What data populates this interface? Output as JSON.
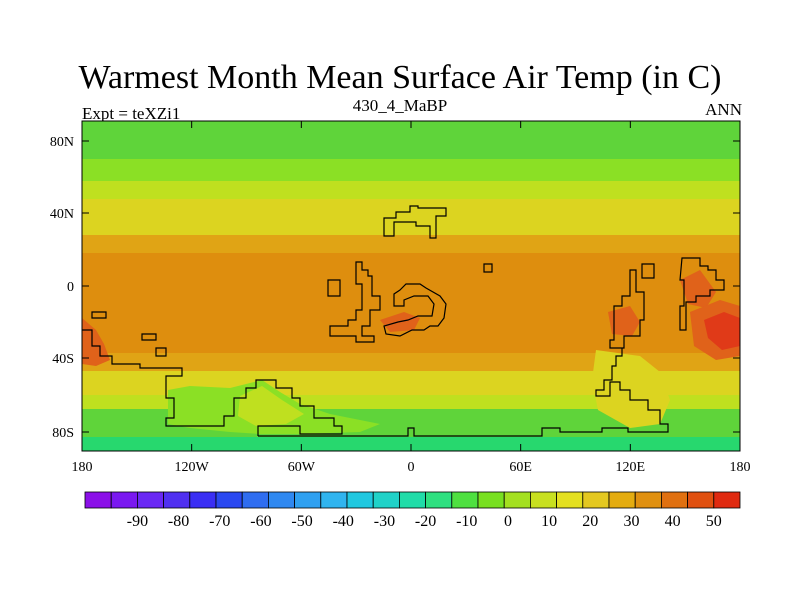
{
  "title": "Warmest Month Mean Surface Air Temp (in C)",
  "subtitle_left": "Expt = teXZi1",
  "subtitle_center": "430_4_MaBP",
  "subtitle_right": "ANN",
  "lon_ticks": [
    "180",
    "120W",
    "60W",
    "0",
    "60E",
    "120E",
    "180"
  ],
  "lat_ticks": [
    "80N",
    "40N",
    "0",
    "40S",
    "80S"
  ],
  "colorbar_labels": [
    "-90",
    "-80",
    "-70",
    "-60",
    "-50",
    "-40",
    "-30",
    "-20",
    "-10",
    "0",
    "10",
    "20",
    "30",
    "40",
    "50"
  ],
  "colorbar_colors": [
    "#8b10e8",
    "#7a18f0",
    "#6a28f4",
    "#5030f0",
    "#3a2ef4",
    "#2a48f0",
    "#2f6df0",
    "#2f88f0",
    "#2fa0f0",
    "#30b4ef",
    "#20c8e0",
    "#20d2c8",
    "#20dca8",
    "#2ee080",
    "#4ee040",
    "#78e020",
    "#a4e020",
    "#c8e020",
    "#e4e020",
    "#e4c820",
    "#e4ac10",
    "#e09010",
    "#e07010",
    "#e05010",
    "#e02a10"
  ],
  "colors": {
    "cold_band": "#5fd43a",
    "cool_band": "#8be025",
    "mild_band": "#bfe01f",
    "warm_band": "#dcd420",
    "hot_band": "#e0a415",
    "tropic": "#de8e0e",
    "very_hot": "#e0621a",
    "extreme": "#e03a18",
    "polar": "#27d86e"
  }
}
